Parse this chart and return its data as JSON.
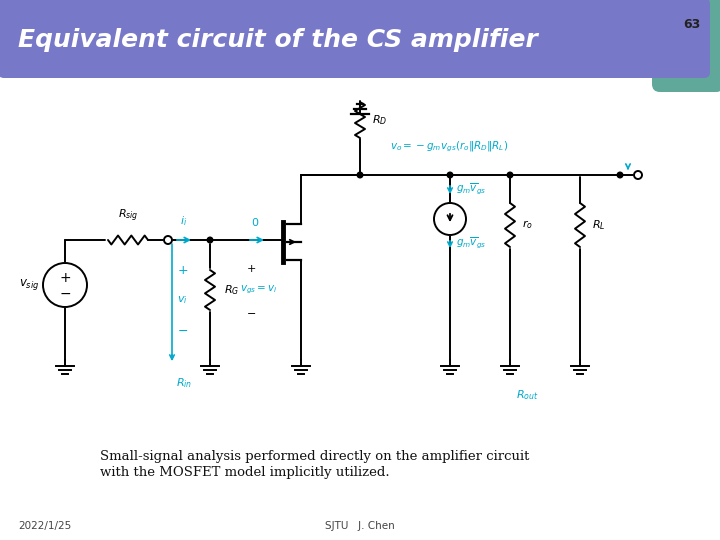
{
  "title": "Equivalent circuit of the CS amplifier",
  "slide_number": "63",
  "header_bg_color": "#7878c8",
  "header_text_color": "#ffffff",
  "body_bg_color": "#ffffff",
  "border_color": "#5fa89a",
  "caption_line1": "Small-signal analysis performed directly on the amplifier circuit",
  "caption_line2": "with the MOSFET model implicitly utilized.",
  "footer_left": "2022/1/25",
  "footer_center": "SJTU   J. Chen",
  "circuit_color": "#000000",
  "highlight_color": "#00aacc"
}
